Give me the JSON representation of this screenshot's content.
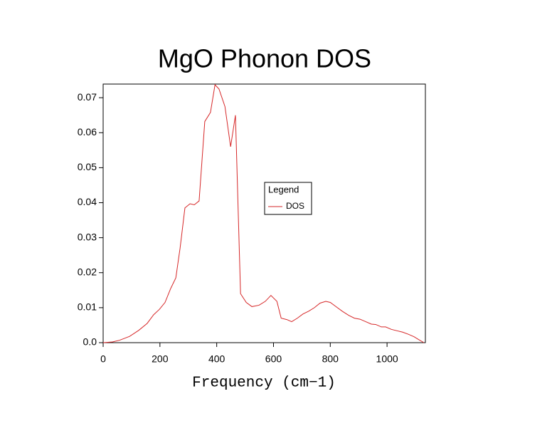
{
  "chart_data": {
    "type": "line",
    "title": "MgO Phonon DOS",
    "x_label": "Frequency (cm−1)",
    "x": [
      0,
      33,
      58,
      93,
      125,
      155,
      178,
      198,
      218,
      238,
      256,
      271,
      288,
      306,
      321,
      338,
      358,
      378,
      394,
      408,
      429,
      449,
      466,
      484,
      504,
      524,
      549,
      571,
      591,
      612,
      627,
      647,
      664,
      684,
      704,
      724,
      744,
      764,
      784,
      800,
      820,
      842,
      865,
      885,
      905,
      925,
      945,
      960,
      980,
      995,
      1015,
      1035,
      1055,
      1075,
      1095,
      1115,
      1130
    ],
    "series": [
      {
        "name": "DOS",
        "color": "#d62728",
        "values": [
          0,
          0.0002,
          0.0007,
          0.0018,
          0.0035,
          0.0055,
          0.008,
          0.0095,
          0.0115,
          0.0155,
          0.0185,
          0.027,
          0.0385,
          0.0397,
          0.0394,
          0.0405,
          0.0632,
          0.0658,
          0.0737,
          0.0725,
          0.0675,
          0.056,
          0.065,
          0.014,
          0.0115,
          0.0103,
          0.0107,
          0.0118,
          0.0135,
          0.0118,
          0.007,
          0.0066,
          0.006,
          0.007,
          0.0082,
          0.009,
          0.01,
          0.0113,
          0.0118,
          0.0115,
          0.0103,
          0.009,
          0.0078,
          0.007,
          0.0067,
          0.006,
          0.0053,
          0.0052,
          0.0045,
          0.0045,
          0.0038,
          0.0034,
          0.003,
          0.0024,
          0.0017,
          0.0007,
          0
        ]
      }
    ],
    "xlim": [
      0,
      1135
    ],
    "xticks": [
      0,
      200,
      400,
      600,
      800,
      1000
    ],
    "ylim": [
      0,
      0.0739
    ],
    "yticks": [
      {
        "value": 0,
        "label": "0.0"
      },
      0.01,
      0.02,
      0.03,
      0.04,
      0.05,
      0.06,
      0.07
    ],
    "legend_title": "Legend"
  }
}
